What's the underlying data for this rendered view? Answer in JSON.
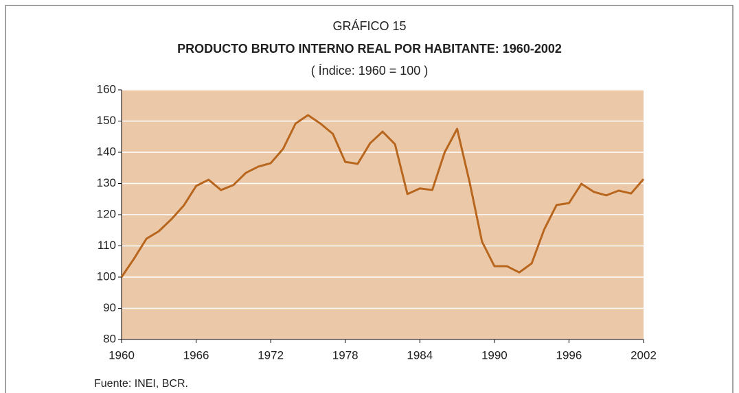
{
  "chart_data": {
    "type": "line",
    "label": "GRÁFICO 15",
    "title": "PRODUCTO BRUTO INTERNO REAL POR HABITANTE: 1960-2002",
    "subtitle": "( Índice: 1960 = 100 )",
    "source": "Fuente:  INEI, BCR.",
    "x": [
      1960,
      1961,
      1962,
      1963,
      1964,
      1965,
      1966,
      1967,
      1968,
      1969,
      1970,
      1971,
      1972,
      1973,
      1974,
      1975,
      1976,
      1977,
      1978,
      1979,
      1980,
      1981,
      1982,
      1983,
      1984,
      1985,
      1986,
      1987,
      1988,
      1989,
      1990,
      1991,
      1992,
      1993,
      1994,
      1995,
      1996,
      1997,
      1998,
      1999,
      2000,
      2001,
      2002
    ],
    "series": [
      {
        "color": "#b8661e",
        "values": [
          100,
          105.9,
          112.3,
          114.7,
          118.5,
          122.9,
          129.2,
          131.2,
          127.9,
          129.5,
          133.4,
          135.4,
          136.5,
          141.1,
          149.2,
          151.9,
          149.2,
          145.9,
          136.9,
          136.3,
          142.9,
          146.6,
          142.6,
          126.6,
          128.4,
          127.9,
          140,
          147.5,
          130.5,
          111.4,
          103.5,
          103.5,
          101.5,
          104.4,
          115.2,
          123.1,
          123.7,
          129.9,
          127.3,
          126.2,
          127.7,
          126.8,
          131.4
        ]
      }
    ],
    "xlim": [
      1960,
      2002
    ],
    "xticks": [
      1960,
      1966,
      1972,
      1978,
      1984,
      1990,
      1996,
      2002
    ],
    "ylim": [
      80,
      160
    ],
    "yticks": [
      80,
      90,
      100,
      110,
      120,
      130,
      140,
      150,
      160
    ],
    "grid": true,
    "plot_background": "#ebc9a8"
  }
}
